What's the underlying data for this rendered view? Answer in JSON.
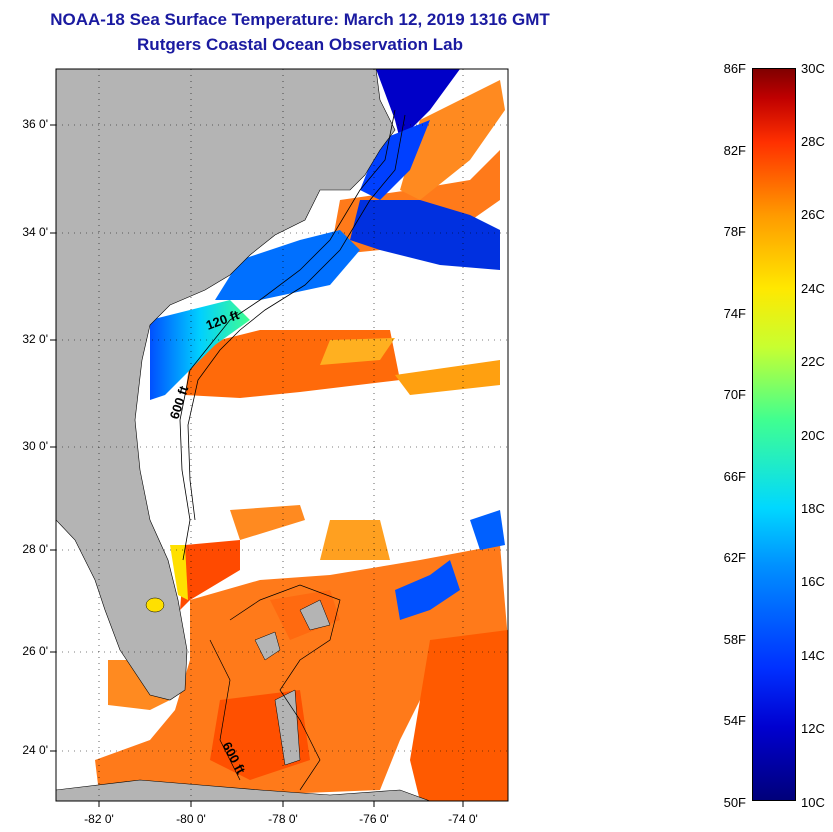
{
  "title": {
    "line1": "NOAA-18 Sea Surface Temperature:  March 12, 2019 1316 GMT",
    "line2": "Rutgers Coastal Ocean Observation Lab"
  },
  "map": {
    "lat_labels": [
      "36 0'",
      "34 0'",
      "32 0'",
      "30 0'",
      "28 0'",
      "26 0'",
      "24 0'"
    ],
    "lon_labels": [
      "-82 0'",
      "-80 0'",
      "-78 0'",
      "-76 0'",
      "-74 0'"
    ],
    "contour_labels": [
      "120 ft",
      "600 ft",
      "600 ft"
    ],
    "colors": {
      "land": "#b4b4b4",
      "cloud": "#ffffff",
      "warm": "#ff7a1a",
      "cold": "#0000c8"
    }
  },
  "colorbar": {
    "fahrenheit": [
      "86F",
      "82F",
      "78F",
      "74F",
      "70F",
      "66F",
      "62F",
      "58F",
      "54F",
      "50F"
    ],
    "celsius": [
      "30C",
      "28C",
      "26C",
      "24C",
      "22C",
      "20C",
      "18C",
      "16C",
      "14C",
      "12C",
      "10C"
    ]
  }
}
